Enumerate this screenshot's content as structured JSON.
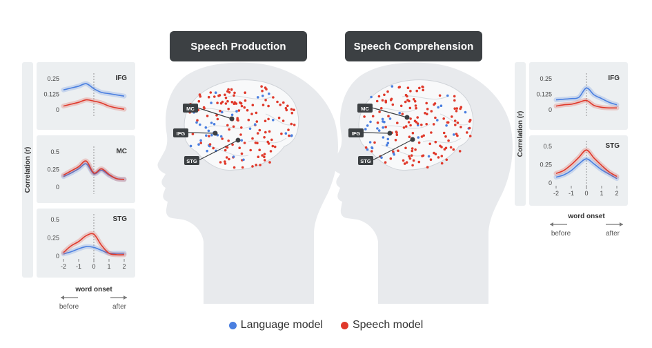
{
  "titles": {
    "production": "Speech Production",
    "comprehension": "Speech Comprehension"
  },
  "colors": {
    "language": "#4a7fe0",
    "speech": "#e0392b",
    "panel": "#eceff1",
    "title_bg": "#3c4043"
  },
  "region_labels": {
    "mc": "MC",
    "ifg": "IFG",
    "stg": "STG"
  },
  "axis": {
    "ylabel": "Correlation (r)",
    "xlabel": "word onset",
    "before": "before",
    "after": "after",
    "xticks": [
      "-2",
      "-1",
      "0",
      "1",
      "2"
    ]
  },
  "legend": {
    "language": "Language model",
    "speech": "Speech model"
  },
  "chart_data": [
    {
      "type": "line",
      "group": "production",
      "region": "IFG",
      "x": [
        -2,
        -1.5,
        -1,
        -0.5,
        0,
        0.5,
        1,
        1.5,
        2
      ],
      "ylim": [
        0,
        0.25
      ],
      "yticks": [
        "0.25",
        "0.125",
        "0"
      ],
      "series": [
        {
          "name": "Language model",
          "values": [
            0.16,
            0.175,
            0.19,
            0.21,
            0.17,
            0.14,
            0.13,
            0.12,
            0.11
          ]
        },
        {
          "name": "Speech model",
          "values": [
            0.03,
            0.045,
            0.06,
            0.08,
            0.07,
            0.055,
            0.03,
            0.015,
            0.005
          ]
        }
      ]
    },
    {
      "type": "line",
      "group": "production",
      "region": "MC",
      "x": [
        -2,
        -1.5,
        -1,
        -0.5,
        0,
        0.5,
        1,
        1.5,
        2
      ],
      "ylim": [
        0,
        0.5
      ],
      "yticks": [
        "0.5",
        "0.25",
        "0"
      ],
      "series": [
        {
          "name": "Language model",
          "values": [
            0.15,
            0.2,
            0.26,
            0.33,
            0.19,
            0.24,
            0.17,
            0.12,
            0.11
          ]
        },
        {
          "name": "Speech model",
          "values": [
            0.17,
            0.23,
            0.29,
            0.37,
            0.2,
            0.26,
            0.18,
            0.12,
            0.11
          ]
        }
      ]
    },
    {
      "type": "line",
      "group": "production",
      "region": "STG",
      "x": [
        -2,
        -1.5,
        -1,
        -0.5,
        0,
        0.5,
        1,
        1.5,
        2
      ],
      "ylim": [
        0,
        0.5
      ],
      "yticks": [
        "0.5",
        "0.25",
        "0"
      ],
      "series": [
        {
          "name": "Language model",
          "values": [
            0.03,
            0.06,
            0.1,
            0.13,
            0.12,
            0.08,
            0.04,
            0.04,
            0.04
          ]
        },
        {
          "name": "Speech model",
          "values": [
            0.05,
            0.14,
            0.2,
            0.28,
            0.3,
            0.15,
            0.04,
            0.02,
            0.02
          ]
        }
      ]
    },
    {
      "type": "line",
      "group": "comprehension",
      "region": "IFG",
      "x": [
        -2,
        -1.5,
        -1,
        -0.5,
        0,
        0.5,
        1,
        1.5,
        2
      ],
      "ylim": [
        0,
        0.25
      ],
      "yticks": [
        "0.25",
        "0.125",
        "0"
      ],
      "series": [
        {
          "name": "Language model",
          "values": [
            0.08,
            0.085,
            0.09,
            0.1,
            0.175,
            0.12,
            0.09,
            0.06,
            0.04
          ]
        },
        {
          "name": "Speech model",
          "values": [
            0.03,
            0.04,
            0.045,
            0.06,
            0.075,
            0.035,
            0.02,
            0.015,
            0.015
          ]
        }
      ]
    },
    {
      "type": "line",
      "group": "comprehension",
      "region": "STG",
      "x": [
        -2,
        -1.5,
        -1,
        -0.5,
        0,
        0.5,
        1,
        1.5,
        2
      ],
      "ylim": [
        0,
        0.5
      ],
      "yticks": [
        "0.5",
        "0.25",
        "0"
      ],
      "series": [
        {
          "name": "Language model",
          "values": [
            0.08,
            0.11,
            0.17,
            0.26,
            0.33,
            0.26,
            0.18,
            0.12,
            0.06
          ]
        },
        {
          "name": "Speech model",
          "values": [
            0.13,
            0.17,
            0.25,
            0.35,
            0.45,
            0.34,
            0.24,
            0.15,
            0.09
          ]
        }
      ]
    }
  ]
}
